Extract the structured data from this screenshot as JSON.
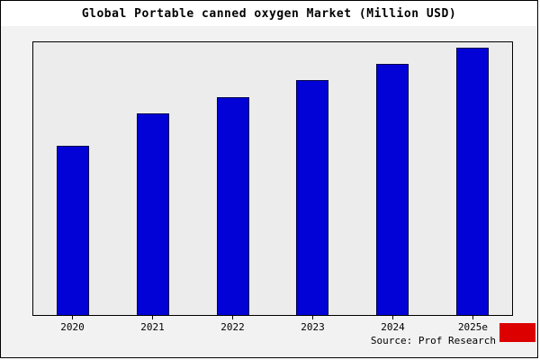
{
  "chart_data": {
    "type": "bar",
    "title": "Global Portable canned oxygen Market (Million USD)",
    "categories": [
      "2020",
      "2021",
      "2022",
      "2023",
      "2024",
      "2025e"
    ],
    "values": [
      62,
      74,
      80,
      86,
      92,
      98
    ],
    "xlabel": "",
    "ylabel": "",
    "ylim": [
      0,
      100
    ],
    "grid": false,
    "legend": "none",
    "bar_color": "#0202d6",
    "bar_border_color": "#00004d",
    "plot_background": "#ececec",
    "outer_background": "#f2f2f2",
    "title_background": "#ffffff"
  },
  "footer": {
    "source": "Source: Prof Research",
    "logo_color": "#dd0000"
  }
}
